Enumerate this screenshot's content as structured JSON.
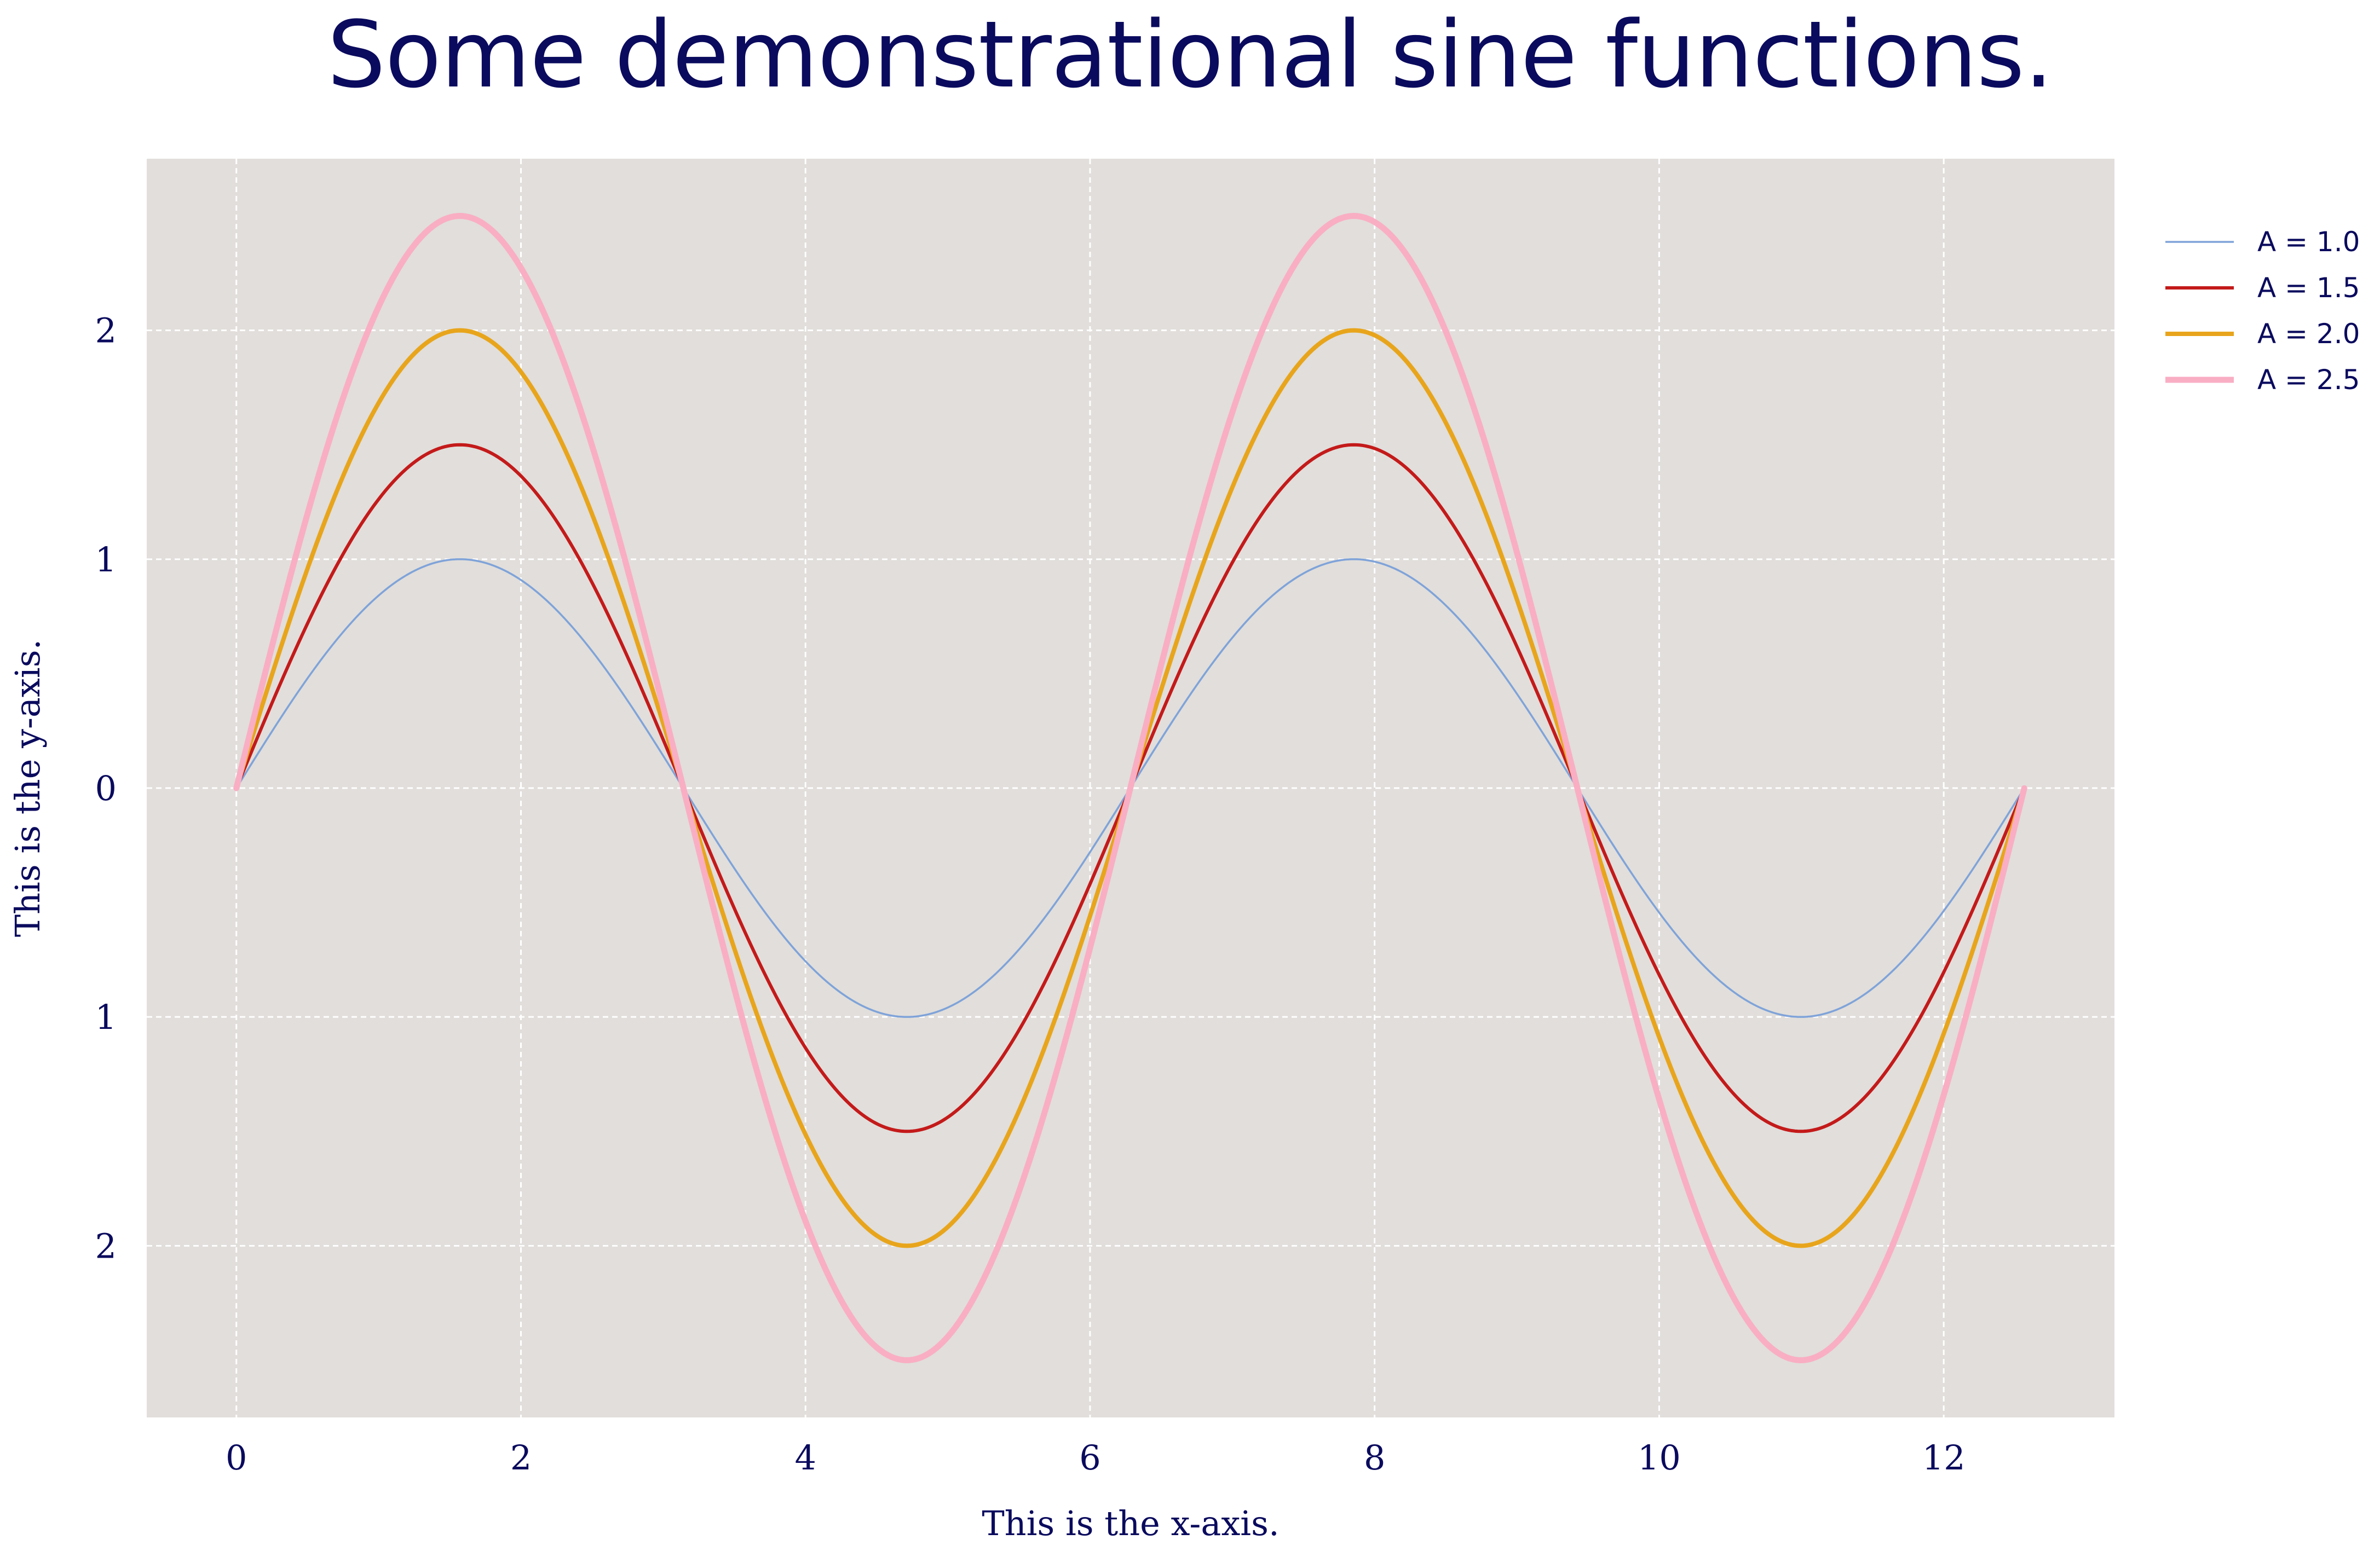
{
  "chart_data": {
    "type": "line",
    "title": "Some demonstrational sine functions.",
    "xlabel": "This is the x-axis.",
    "ylabel": "This is the y-axis.",
    "xlim": [
      -0.63,
      13.2
    ],
    "ylim": [
      -2.75,
      2.75
    ],
    "x_ticks": [
      0,
      2,
      4,
      6,
      8,
      10,
      12
    ],
    "x_tick_labels": [
      "0",
      "2",
      "4",
      "6",
      "8",
      "10",
      "12"
    ],
    "y_ticks": [
      2,
      1,
      0,
      -1,
      -2
    ],
    "y_tick_labels": [
      "2",
      "1",
      "0",
      "1",
      "2"
    ],
    "grid": true,
    "legend_position": "outside-top-right",
    "function": "A * sin(x)",
    "x_range": [
      0,
      12.566
    ],
    "series": [
      {
        "name": "A = 1.0",
        "amplitude": 1.0,
        "color": "#7fa3d9",
        "width": "thin"
      },
      {
        "name": "A = 1.5",
        "amplitude": 1.5,
        "color": "#c41a1a",
        "width": "medium"
      },
      {
        "name": "A = 2.0",
        "amplitude": 2.0,
        "color": "#e8a51c",
        "width": "thick"
      },
      {
        "name": "A = 2.5",
        "amplitude": 2.5,
        "color": "#f9aec4",
        "width": "thickest"
      }
    ],
    "colors": {
      "plot_background": "#e1dedb",
      "grid": "#ffffff",
      "text": "#0a0a5e"
    }
  }
}
